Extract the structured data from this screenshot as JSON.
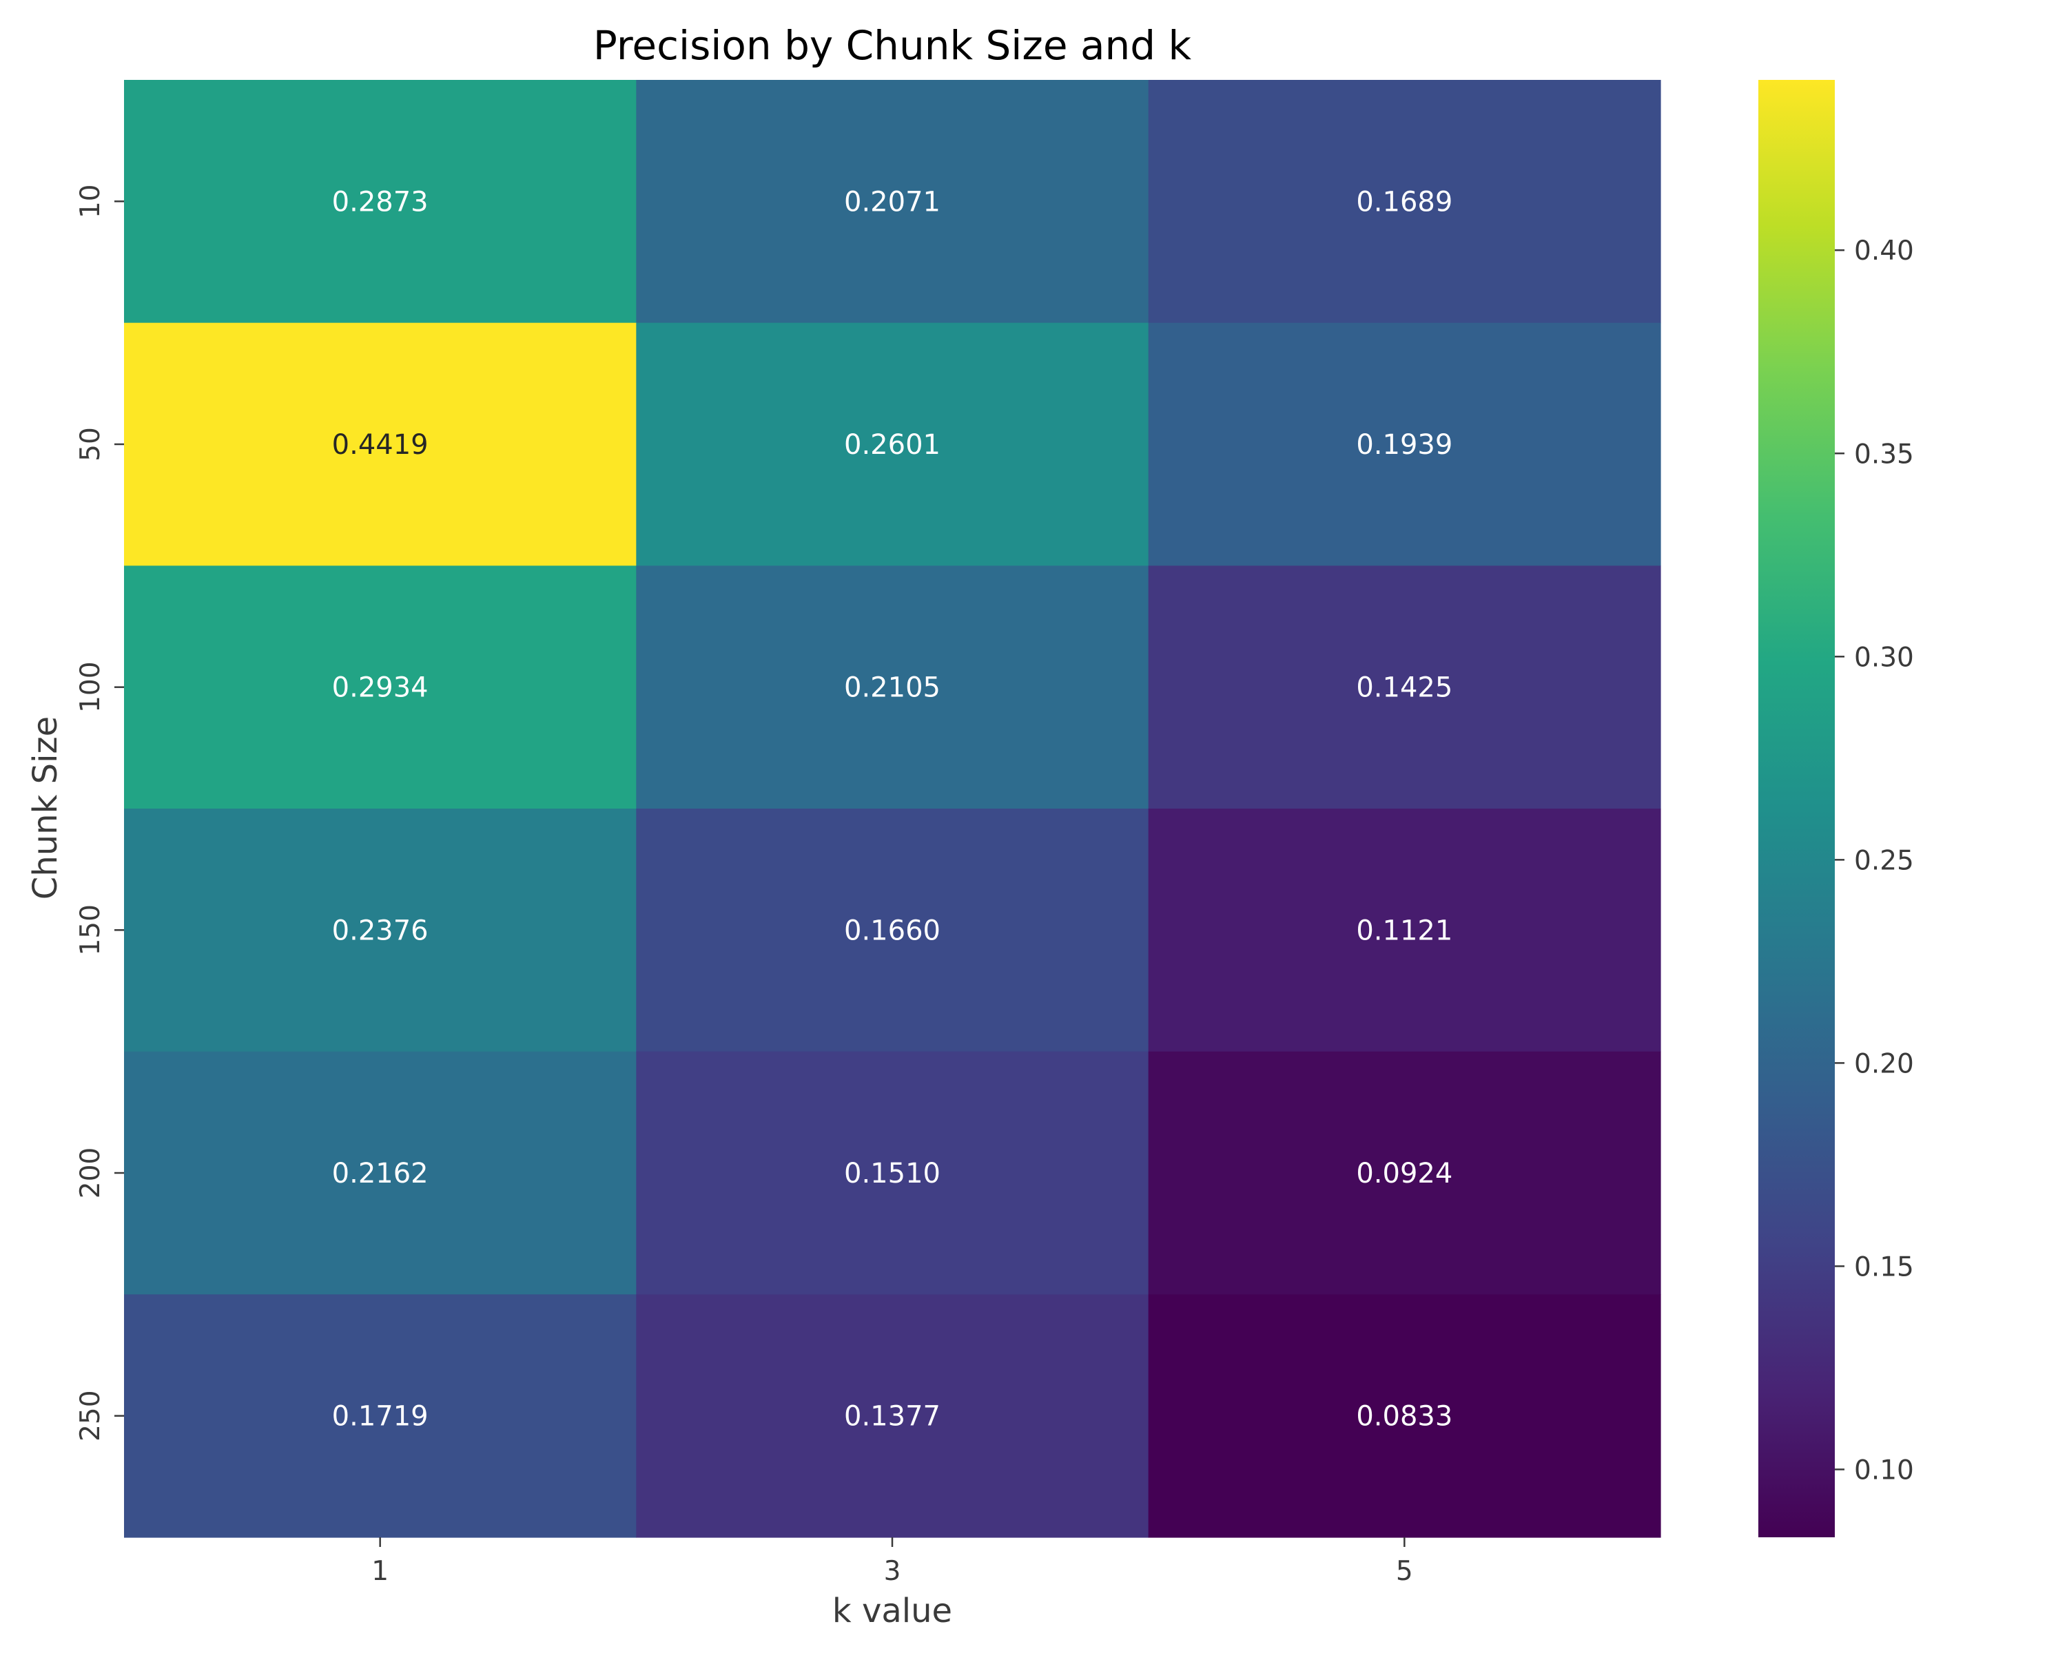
{
  "chart_data": {
    "type": "heatmap",
    "title": "Precision by Chunk Size and k",
    "xlabel": "k value",
    "ylabel": "Chunk Size",
    "x_categories": [
      "1",
      "3",
      "5"
    ],
    "y_categories": [
      "10",
      "50",
      "100",
      "150",
      "200",
      "250"
    ],
    "values": [
      [
        0.2873,
        0.2071,
        0.1689
      ],
      [
        0.4419,
        0.2601,
        0.1939
      ],
      [
        0.2934,
        0.2105,
        0.1425
      ],
      [
        0.2376,
        0.166,
        0.1121
      ],
      [
        0.2162,
        0.151,
        0.0924
      ],
      [
        0.1719,
        0.1377,
        0.0833
      ]
    ],
    "value_labels": [
      [
        "0.2873",
        "0.2071",
        "0.1689"
      ],
      [
        "0.4419",
        "0.2601",
        "0.1939"
      ],
      [
        "0.2934",
        "0.2105",
        "0.1425"
      ],
      [
        "0.2376",
        "0.1660",
        "0.1121"
      ],
      [
        "0.2162",
        "0.1510",
        "0.0924"
      ],
      [
        "0.1719",
        "0.1377",
        "0.0833"
      ]
    ],
    "colormap": "viridis",
    "color_range": [
      0.0833,
      0.4419
    ],
    "colorbar_ticks": [
      0.1,
      0.15,
      0.2,
      0.25,
      0.3,
      0.35,
      0.4
    ],
    "colorbar_tick_labels": [
      "0.10",
      "0.15",
      "0.20",
      "0.25",
      "0.30",
      "0.35",
      "0.40"
    ],
    "grid": false,
    "legend": "colorbar-right"
  }
}
